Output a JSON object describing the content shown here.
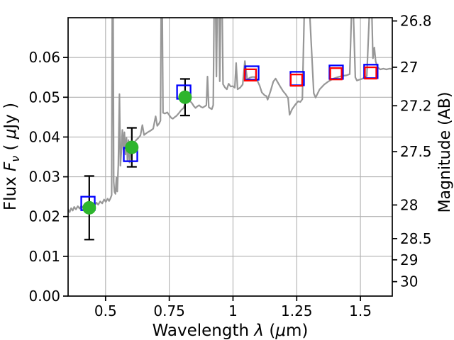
{
  "figure": {
    "background": "#ffffff"
  },
  "chart_data": {
    "type": "line",
    "title": "",
    "xlabel": "Wavelength λ (μm)",
    "ylabel_left": "Flux Fν ( μJy )",
    "ylabel_right": "Magnitude (AB)",
    "xlabel_parts": [
      {
        "t": "Wavelength ",
        "i": false
      },
      {
        "t": "λ",
        "i": true
      },
      {
        "t": " (",
        "i": false
      },
      {
        "t": "μ",
        "i": true
      },
      {
        "t": "m)",
        "i": false
      }
    ],
    "ylabel_left_parts": [
      {
        "t": "Flux ",
        "i": false
      },
      {
        "t": "F",
        "i": true
      },
      {
        "t": "ν",
        "i": true,
        "sub": true
      },
      {
        "t": " ( ",
        "i": false
      },
      {
        "t": "μ",
        "i": true
      },
      {
        "t": "Jy )",
        "i": false
      }
    ],
    "ylabel_right_parts": [
      {
        "t": "Magnitude (AB)",
        "i": false
      }
    ],
    "xlim": [
      0.353,
      1.625
    ],
    "ylim": [
      0,
      0.07
    ],
    "grid": true,
    "x_ticks": [
      {
        "v": 0.5,
        "label": "0.5"
      },
      {
        "v": 0.75,
        "label": "0.75"
      },
      {
        "v": 1,
        "label": "1"
      },
      {
        "v": 1.25,
        "label": "1.25"
      },
      {
        "v": 1.5,
        "label": "1.5"
      }
    ],
    "y_ticks_flux": [
      {
        "v": 0,
        "label": "0.00"
      },
      {
        "v": 0.01,
        "label": "0.01"
      },
      {
        "v": 0.02,
        "label": "0.02"
      },
      {
        "v": 0.03,
        "label": "0.03"
      },
      {
        "v": 0.04,
        "label": "0.04"
      },
      {
        "v": 0.05,
        "label": "0.05"
      },
      {
        "v": 0.06,
        "label": "0.06"
      }
    ],
    "y_ticks_mag": [
      {
        "v": 26.8,
        "label": "26.8"
      },
      {
        "v": 27,
        "label": "27"
      },
      {
        "v": 27.2,
        "label": "27.2"
      },
      {
        "v": 27.5,
        "label": "27.5"
      },
      {
        "v": 28,
        "label": "28"
      },
      {
        "v": 28.5,
        "label": "28.5"
      },
      {
        "v": 29,
        "label": "29"
      },
      {
        "v": 30,
        "label": "30"
      }
    ],
    "colors": {
      "spectrum": "#979797",
      "observed": "#2db52d",
      "model_blue": "#0000ff",
      "model_red": "#ff0000",
      "errorbar": "#000000",
      "grid": "#b0b0b0",
      "frame": "#000000"
    },
    "observed_photometry": {
      "marker": "filled-circle",
      "points": [
        {
          "x": 0.436,
          "y": 0.0222,
          "yerr": 0.008
        },
        {
          "x": 0.603,
          "y": 0.0374,
          "yerr": 0.0049
        },
        {
          "x": 0.812,
          "y": 0.05,
          "yerr": 0.0046
        }
      ]
    },
    "model_photometry_blue": {
      "marker": "open-square",
      "points": [
        {
          "x": 0.431,
          "y": 0.0233
        },
        {
          "x": 0.598,
          "y": 0.0356
        },
        {
          "x": 0.807,
          "y": 0.0513
        },
        {
          "x": 1.074,
          "y": 0.0561
        },
        {
          "x": 1.252,
          "y": 0.0547
        },
        {
          "x": 1.405,
          "y": 0.0563
        },
        {
          "x": 1.541,
          "y": 0.0565
        }
      ]
    },
    "model_photometry_red": {
      "marker": "open-square",
      "points": [
        {
          "x": 1.068,
          "y": 0.0556
        },
        {
          "x": 1.249,
          "y": 0.0543
        },
        {
          "x": 1.404,
          "y": 0.0559
        },
        {
          "x": 1.54,
          "y": 0.0561
        }
      ]
    },
    "spectrum": {
      "note": "values 0.075 are emission-line spikes clipped at the top of the axes",
      "points": [
        [
          0.353,
          0.0218
        ],
        [
          0.359,
          0.0211
        ],
        [
          0.365,
          0.0221
        ],
        [
          0.371,
          0.0215
        ],
        [
          0.377,
          0.0224
        ],
        [
          0.384,
          0.0218
        ],
        [
          0.391,
          0.0226
        ],
        [
          0.398,
          0.022
        ],
        [
          0.405,
          0.0227
        ],
        [
          0.412,
          0.0222
        ],
        [
          0.419,
          0.0229
        ],
        [
          0.426,
          0.0223
        ],
        [
          0.433,
          0.0229
        ],
        [
          0.44,
          0.0225
        ],
        [
          0.448,
          0.0231
        ],
        [
          0.456,
          0.0227
        ],
        [
          0.464,
          0.0235
        ],
        [
          0.471,
          0.023
        ],
        [
          0.479,
          0.0238
        ],
        [
          0.487,
          0.0233
        ],
        [
          0.494,
          0.0243
        ],
        [
          0.501,
          0.0237
        ],
        [
          0.508,
          0.0245
        ],
        [
          0.514,
          0.0239
        ],
        [
          0.52,
          0.0247
        ],
        [
          0.524,
          0.0254
        ],
        [
          0.5265,
          0.075
        ],
        [
          0.5295,
          0.075
        ],
        [
          0.532,
          0.0288
        ],
        [
          0.535,
          0.0262
        ],
        [
          0.539,
          0.0257
        ],
        [
          0.5425,
          0.0298
        ],
        [
          0.546,
          0.0263
        ],
        [
          0.55,
          0.033
        ],
        [
          0.5545,
          0.0508
        ],
        [
          0.558,
          0.0328
        ],
        [
          0.562,
          0.0364
        ],
        [
          0.566,
          0.0418
        ],
        [
          0.57,
          0.0368
        ],
        [
          0.574,
          0.0412
        ],
        [
          0.578,
          0.0356
        ],
        [
          0.582,
          0.0398
        ],
        [
          0.586,
          0.034
        ],
        [
          0.59,
          0.0392
        ],
        [
          0.594,
          0.0336
        ],
        [
          0.599,
          0.0366
        ],
        [
          0.604,
          0.0356
        ],
        [
          0.609,
          0.0373
        ],
        [
          0.614,
          0.0388
        ],
        [
          0.621,
          0.0393
        ],
        [
          0.629,
          0.0398
        ],
        [
          0.637,
          0.0404
        ],
        [
          0.6445,
          0.043
        ],
        [
          0.651,
          0.0405
        ],
        [
          0.659,
          0.0409
        ],
        [
          0.668,
          0.0413
        ],
        [
          0.677,
          0.0416
        ],
        [
          0.687,
          0.0421
        ],
        [
          0.6965,
          0.0452
        ],
        [
          0.703,
          0.0428
        ],
        [
          0.71,
          0.0434
        ],
        [
          0.7155,
          0.0441
        ],
        [
          0.7185,
          0.075
        ],
        [
          0.722,
          0.075
        ],
        [
          0.7255,
          0.0461
        ],
        [
          0.733,
          0.0459
        ],
        [
          0.742,
          0.0462
        ],
        [
          0.75,
          0.0455
        ],
        [
          0.758,
          0.0448
        ],
        [
          0.764,
          0.0446
        ],
        [
          0.771,
          0.045
        ],
        [
          0.778,
          0.0453
        ],
        [
          0.789,
          0.0461
        ],
        [
          0.797,
          0.0468
        ],
        [
          0.806,
          0.0473
        ],
        [
          0.817,
          0.0491
        ],
        [
          0.825,
          0.0495
        ],
        [
          0.832,
          0.049
        ],
        [
          0.839,
          0.0485
        ],
        [
          0.846,
          0.0478
        ],
        [
          0.853,
          0.0473
        ],
        [
          0.86,
          0.0477
        ],
        [
          0.867,
          0.048
        ],
        [
          0.874,
          0.0476
        ],
        [
          0.881,
          0.0474
        ],
        [
          0.889,
          0.0477
        ],
        [
          0.8955,
          0.048
        ],
        [
          0.9,
          0.0552
        ],
        [
          0.905,
          0.0475
        ],
        [
          0.911,
          0.0472
        ],
        [
          0.917,
          0.047
        ],
        [
          0.9225,
          0.048
        ],
        [
          0.9265,
          0.075
        ],
        [
          0.9315,
          0.075
        ],
        [
          0.935,
          0.0552
        ],
        [
          0.939,
          0.075
        ],
        [
          0.9445,
          0.075
        ],
        [
          0.948,
          0.054
        ],
        [
          0.952,
          0.075
        ],
        [
          0.957,
          0.075
        ],
        [
          0.961,
          0.0533
        ],
        [
          0.968,
          0.0525
        ],
        [
          0.976,
          0.052
        ],
        [
          0.983,
          0.0534
        ],
        [
          0.991,
          0.0527
        ],
        [
          1.0,
          0.0528
        ],
        [
          1.007,
          0.0524
        ],
        [
          1.0125,
          0.0586
        ],
        [
          1.018,
          0.052
        ],
        [
          1.028,
          0.0524
        ],
        [
          1.038,
          0.0532
        ],
        [
          1.0465,
          0.0591
        ],
        [
          1.056,
          0.0544
        ],
        [
          1.065,
          0.0549
        ],
        [
          1.075,
          0.0551
        ],
        [
          1.085,
          0.0551
        ],
        [
          1.094,
          0.0544
        ],
        [
          1.104,
          0.053
        ],
        [
          1.113,
          0.0512
        ],
        [
          1.124,
          0.0505
        ],
        [
          1.131,
          0.0503
        ],
        [
          1.136,
          0.0494
        ],
        [
          1.147,
          0.0515
        ],
        [
          1.158,
          0.0539
        ],
        [
          1.167,
          0.0547
        ],
        [
          1.177,
          0.0536
        ],
        [
          1.186,
          0.0526
        ],
        [
          1.197,
          0.0515
        ],
        [
          1.206,
          0.0508
        ],
        [
          1.216,
          0.0498
        ],
        [
          1.222,
          0.0456
        ],
        [
          1.232,
          0.047
        ],
        [
          1.245,
          0.0482
        ],
        [
          1.256,
          0.049
        ],
        [
          1.264,
          0.0488
        ],
        [
          1.272,
          0.0495
        ],
        [
          1.281,
          0.075
        ],
        [
          1.298,
          0.075
        ],
        [
          1.317,
          0.051
        ],
        [
          1.324,
          0.0499
        ],
        [
          1.34,
          0.052
        ],
        [
          1.358,
          0.0532
        ],
        [
          1.375,
          0.054
        ],
        [
          1.394,
          0.0547
        ],
        [
          1.413,
          0.0551
        ],
        [
          1.43,
          0.0554
        ],
        [
          1.445,
          0.0555
        ],
        [
          1.458,
          0.0558
        ],
        [
          1.4665,
          0.075
        ],
        [
          1.4705,
          0.075
        ],
        [
          1.48,
          0.055
        ],
        [
          1.486,
          0.0542
        ],
        [
          1.495,
          0.0544
        ],
        [
          1.505,
          0.0546
        ],
        [
          1.515,
          0.0549
        ],
        [
          1.525,
          0.0553
        ],
        [
          1.5375,
          0.075
        ],
        [
          1.5435,
          0.075
        ],
        [
          1.549,
          0.0598
        ],
        [
          1.5545,
          0.0625
        ],
        [
          1.56,
          0.059
        ],
        [
          1.568,
          0.0575
        ],
        [
          1.578,
          0.057
        ],
        [
          1.59,
          0.0572
        ],
        [
          1.602,
          0.057
        ],
        [
          1.614,
          0.0572
        ],
        [
          1.625,
          0.0571
        ]
      ]
    }
  }
}
